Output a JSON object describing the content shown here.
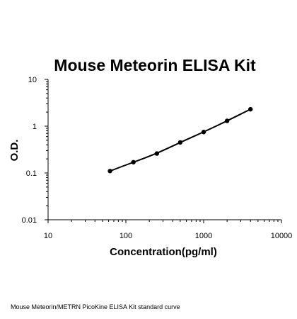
{
  "caption": "Mouse Meteorin/METRN PicoKine ELISA Kit standard curve",
  "chart_data": {
    "type": "scatter",
    "title": "Mouse Meteorin ELISA Kit",
    "xlabel": "Concentration(pg/ml)",
    "ylabel": "O.D.",
    "xscale": "log",
    "yscale": "log",
    "xlim": [
      10,
      10000
    ],
    "ylim": [
      0.01,
      10
    ],
    "x_ticks": [
      "10",
      "100",
      "1000",
      "10000"
    ],
    "y_ticks": [
      "0.01",
      "0.1",
      "1",
      "10"
    ],
    "grid": false,
    "legend": "none",
    "color": "#000000",
    "series": [
      {
        "x": [
          62.5,
          125,
          250,
          500,
          1000,
          2000,
          4000
        ],
        "y": [
          0.11,
          0.17,
          0.26,
          0.45,
          0.75,
          1.3,
          2.3
        ],
        "trendline": true
      }
    ]
  }
}
